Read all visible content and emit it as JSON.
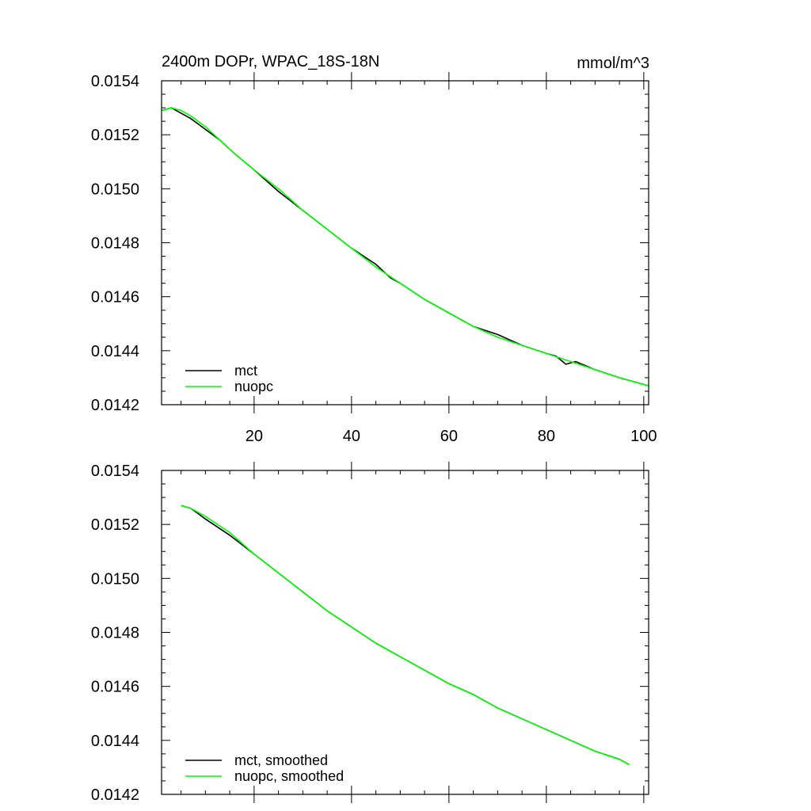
{
  "chart_data": [
    {
      "type": "line",
      "title": "2400m DOPr, WPAC_18S-18N",
      "units": "mmol/m^3",
      "xlabel": "",
      "ylabel": "",
      "xlim": [
        1,
        101
      ],
      "ylim": [
        0.0142,
        0.0154
      ],
      "x_ticks": [
        20,
        40,
        60,
        80,
        100
      ],
      "y_ticks": [
        "0.0142",
        "0.0144",
        "0.0146",
        "0.0148",
        "0.0150",
        "0.0152",
        "0.0154"
      ],
      "legend_position": "bottom-left",
      "series": [
        {
          "name": "mct",
          "color": "#000000",
          "x": [
            1,
            3,
            5,
            7,
            10,
            13,
            16,
            20,
            25,
            30,
            35,
            40,
            45,
            48,
            50,
            55,
            60,
            65,
            70,
            75,
            80,
            82,
            84,
            86,
            90,
            95,
            101
          ],
          "y": [
            0.01529,
            0.0153,
            0.01528,
            0.01526,
            0.01522,
            0.01518,
            0.01513,
            0.01507,
            0.01499,
            0.01492,
            0.01485,
            0.01478,
            0.01472,
            0.01467,
            0.01465,
            0.01459,
            0.01454,
            0.01449,
            0.01446,
            0.01442,
            0.01439,
            0.01438,
            0.01435,
            0.01436,
            0.01433,
            0.0143,
            0.01427
          ]
        },
        {
          "name": "nuopc",
          "color": "#00ff00",
          "x": [
            1,
            3,
            5,
            7,
            10,
            13,
            16,
            20,
            25,
            30,
            35,
            40,
            45,
            50,
            55,
            60,
            65,
            70,
            75,
            80,
            85,
            90,
            95,
            101
          ],
          "y": [
            0.01529,
            0.0153,
            0.01529,
            0.01527,
            0.01523,
            0.01518,
            0.01513,
            0.01507,
            0.015,
            0.01492,
            0.01485,
            0.01478,
            0.01471,
            0.01465,
            0.01459,
            0.01454,
            0.01449,
            0.01445,
            0.01442,
            0.01439,
            0.01436,
            0.01433,
            0.0143,
            0.01427
          ]
        }
      ]
    },
    {
      "type": "line",
      "title": "",
      "xlabel": "",
      "ylabel": "",
      "xlim": [
        1,
        101
      ],
      "ylim": [
        0.0142,
        0.0154
      ],
      "y_ticks": [
        "0.0142",
        "0.0144",
        "0.0146",
        "0.0148",
        "0.0150",
        "0.0152",
        "0.0154"
      ],
      "legend_position": "bottom-left",
      "series": [
        {
          "name": "mct, smoothed",
          "color": "#000000",
          "x": [
            5,
            7,
            10,
            15,
            20,
            25,
            30,
            35,
            40,
            45,
            50,
            55,
            60,
            65,
            70,
            75,
            80,
            85,
            90,
            95,
            97
          ],
          "y": [
            0.01527,
            0.01526,
            0.01522,
            0.01516,
            0.01509,
            0.01502,
            0.01495,
            0.01488,
            0.01482,
            0.01476,
            0.01471,
            0.01466,
            0.01461,
            0.01457,
            0.01452,
            0.01448,
            0.01444,
            0.0144,
            0.01436,
            0.01433,
            0.01431
          ]
        },
        {
          "name": "nuopc, smoothed",
          "color": "#00ff00",
          "x": [
            5,
            7,
            10,
            15,
            20,
            25,
            30,
            35,
            40,
            45,
            50,
            55,
            60,
            65,
            70,
            75,
            80,
            85,
            90,
            95,
            97
          ],
          "y": [
            0.01527,
            0.01526,
            0.01523,
            0.01517,
            0.01509,
            0.01502,
            0.01495,
            0.01488,
            0.01482,
            0.01476,
            0.01471,
            0.01466,
            0.01461,
            0.01457,
            0.01452,
            0.01448,
            0.01444,
            0.0144,
            0.01436,
            0.01433,
            0.01431
          ]
        }
      ]
    }
  ]
}
